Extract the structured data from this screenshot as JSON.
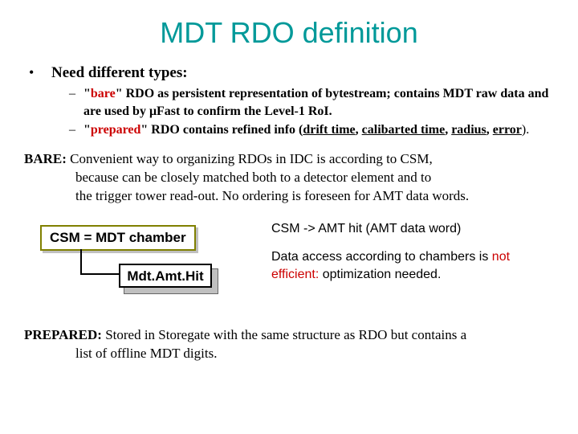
{
  "title": "MDT RDO definition",
  "heading": "Need different types:",
  "sub1_bare": "bare",
  "sub1_rest": "\" RDO as persistent representation of bytestream; contains MDT raw data and are used by μFast to confirm the Level-1 RoI.",
  "sub2_prep": "prepared",
  "sub2_rest": "\" RDO contains refined info (",
  "sub2_drift": "drift time",
  "sub2_comma1": ", ",
  "sub2_calib": "calibarted time",
  "sub2_comma2": ", ",
  "sub2_radius": "radius",
  "sub2_comma3": ", ",
  "sub2_error": "error",
  "sub2_close": ").",
  "bare_label": "BARE:",
  "bare_l1": " Convenient way to organizing RDOs in IDC is according to CSM,",
  "bare_l2": "because can be closely matched both to a detector element and to",
  "bare_l3": "the trigger tower read-out. No ordering is foreseen for AMT data words.",
  "csm_box": "CSM = MDT chamber",
  "amt_box": "Mdt.Amt.Hit",
  "right_top": "CSM -> AMT hit (AMT data word)",
  "right_l1a": "Data access according to chambers is ",
  "right_l1b": "not efficient:",
  "right_l2": " optimization needed.",
  "prep_label": "PREPARED:",
  "prep_l1": " Stored in Storegate with the same structure as RDO but contains a",
  "prep_l2": "list of offline MDT digits."
}
